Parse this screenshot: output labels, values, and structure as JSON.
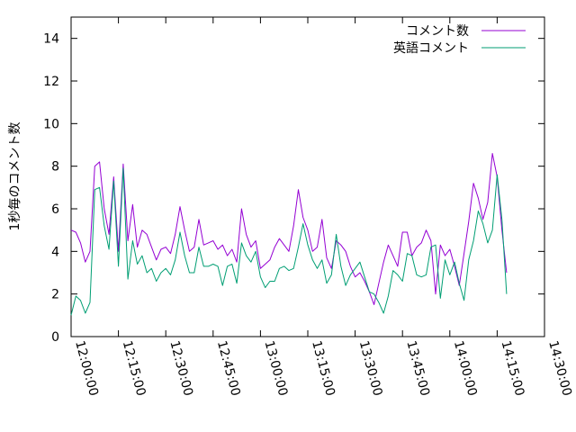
{
  "chart_data": {
    "type": "line",
    "title": "",
    "xlabel": "",
    "ylabel": "1秒毎のコメント数",
    "ylim": [
      0,
      15
    ],
    "xlim": [
      "12:00:00",
      "14:30:00"
    ],
    "yticks": [
      0,
      2,
      4,
      6,
      8,
      10,
      12,
      14
    ],
    "xticks": [
      "12:00:00",
      "12:15:00",
      "12:30:00",
      "12:45:00",
      "13:00:00",
      "13:15:00",
      "13:30:00",
      "13:45:00",
      "14:00:00",
      "14:15:00",
      "14:30:00"
    ],
    "grid": false,
    "legend_position": "top-right",
    "x": [
      "12:00:00",
      "12:01:30",
      "12:03:00",
      "12:04:30",
      "12:06:00",
      "12:07:30",
      "12:09:00",
      "12:10:30",
      "12:12:00",
      "12:13:30",
      "12:15:00",
      "12:16:30",
      "12:18:00",
      "12:19:30",
      "12:21:00",
      "12:22:30",
      "12:24:00",
      "12:25:30",
      "12:27:00",
      "12:28:30",
      "12:30:00",
      "12:31:30",
      "12:33:00",
      "12:34:30",
      "12:36:00",
      "12:37:30",
      "12:39:00",
      "12:40:30",
      "12:42:00",
      "12:43:30",
      "12:45:00",
      "12:46:30",
      "12:48:00",
      "12:49:30",
      "12:51:00",
      "12:52:30",
      "12:54:00",
      "12:55:30",
      "12:57:00",
      "12:58:30",
      "13:00:00",
      "13:01:30",
      "13:03:00",
      "13:04:30",
      "13:06:00",
      "13:07:30",
      "13:09:00",
      "13:10:30",
      "13:12:00",
      "13:13:30",
      "13:15:00",
      "13:16:30",
      "13:18:00",
      "13:19:30",
      "13:21:00",
      "13:22:30",
      "13:24:00",
      "13:25:30",
      "13:27:00",
      "13:28:30",
      "13:30:00",
      "13:31:30",
      "13:33:00",
      "13:34:30",
      "13:36:00",
      "13:37:30",
      "13:39:00",
      "13:40:30",
      "13:42:00",
      "13:43:30",
      "13:45:00",
      "13:46:30",
      "13:48:00",
      "13:49:30",
      "13:51:00",
      "13:52:30",
      "13:54:00",
      "13:55:30",
      "13:57:00",
      "13:58:30",
      "14:00:00",
      "14:01:30",
      "14:03:00",
      "14:04:30",
      "14:06:00",
      "14:07:30",
      "14:09:00",
      "14:10:30",
      "14:12:00",
      "14:13:30",
      "14:15:00",
      "14:16:30",
      "14:18:00"
    ],
    "series": [
      {
        "name": "コメント数",
        "color": "#9400d3",
        "values": [
          5.0,
          4.9,
          4.4,
          3.5,
          4.0,
          8.0,
          8.2,
          6.0,
          4.8,
          7.5,
          4.0,
          8.1,
          4.5,
          6.2,
          4.2,
          5.0,
          4.8,
          4.2,
          3.6,
          4.1,
          4.2,
          3.9,
          4.8,
          6.1,
          5.0,
          4.0,
          4.2,
          5.5,
          4.3,
          4.4,
          4.5,
          4.1,
          4.3,
          3.8,
          4.1,
          3.5,
          6.0,
          4.8,
          4.2,
          4.5,
          3.2,
          3.4,
          3.6,
          4.2,
          4.6,
          4.3,
          4.0,
          5.2,
          6.9,
          5.6,
          5.0,
          4.0,
          4.2,
          5.5,
          3.7,
          3.2,
          4.5,
          4.3,
          4.0,
          3.3,
          2.8,
          3.0,
          2.6,
          2.1,
          1.5,
          2.5,
          3.5,
          4.3,
          3.8,
          3.3,
          4.9,
          4.9,
          3.8,
          4.2,
          4.4,
          5.0,
          4.5,
          2.0,
          4.3,
          3.8,
          4.1,
          3.3,
          2.4,
          3.9,
          5.4,
          7.2,
          6.5,
          5.5,
          6.3,
          8.6,
          7.5,
          5.0,
          3.0
        ]
      },
      {
        "name": "英語コメント",
        "color": "#009e73",
        "values": [
          1.0,
          1.9,
          1.7,
          1.1,
          1.6,
          6.9,
          7.0,
          5.2,
          4.1,
          7.3,
          3.3,
          7.9,
          2.7,
          4.5,
          3.4,
          3.8,
          3.0,
          3.2,
          2.6,
          3.0,
          3.2,
          2.9,
          3.6,
          4.9,
          3.8,
          3.0,
          3.0,
          4.2,
          3.3,
          3.3,
          3.4,
          3.3,
          2.4,
          3.3,
          3.4,
          2.5,
          4.4,
          3.8,
          3.5,
          4.0,
          2.8,
          2.3,
          2.6,
          2.6,
          3.2,
          3.3,
          3.1,
          3.2,
          4.2,
          5.3,
          4.3,
          3.6,
          3.2,
          3.6,
          2.5,
          2.9,
          4.8,
          3.3,
          2.4,
          2.9,
          3.2,
          3.5,
          2.8,
          2.1,
          2.0,
          1.6,
          1.1,
          1.9,
          3.1,
          2.9,
          2.6,
          3.9,
          3.8,
          2.9,
          2.8,
          2.9,
          4.2,
          4.3,
          1.8,
          3.6,
          2.9,
          3.5,
          2.5,
          1.7,
          3.6,
          4.5,
          5.9,
          5.3,
          4.4,
          5.0,
          7.6,
          5.5,
          2.0
        ]
      }
    ]
  }
}
